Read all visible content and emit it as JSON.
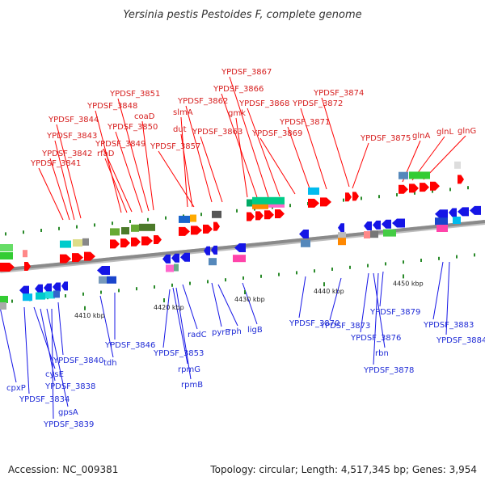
{
  "title": "Yersinia pestis Pestoides F, complete genome",
  "footer": {
    "accession": "Accession: NC_009381",
    "summary": "Topology: circular; Length: 4,517,345 bp; Genes: 3,954"
  },
  "colors": {
    "forward_label": "#d61e1e",
    "reverse_label": "#1f2bd6",
    "forward_arrow": "#ff0000",
    "reverse_arrow": "#1515e6",
    "backbone": "#8a8a8a",
    "tick_mark": "#2a8a2a"
  },
  "scale_ticks": [
    "4410 kbp",
    "4420 kbp",
    "4430 kbp",
    "4440 kbp",
    "4450 kbp"
  ],
  "forward_genes": [
    "YPDSF_3841",
    "YPDSF_3842",
    "YPDSF_3843",
    "YPDSF_3844",
    "YPDSF_3848",
    "rfaD",
    "YPDSF_3849",
    "YPDSF_3850",
    "YPDSF_3851",
    "coaD",
    "slmA",
    "dut",
    "YPDSF_3857",
    "YPDSF_3862",
    "YPDSF_3863",
    "gmk",
    "YPDSF_3866",
    "YPDSF_3867",
    "YPDSF_3868",
    "YPDSF_3869",
    "YPDSF_3871",
    "YPDSF_3872",
    "YPDSF_3874",
    "YPDSF_3875",
    "glnA",
    "glnL",
    "glnG"
  ],
  "reverse_genes": [
    "cpxP",
    "YPDSF_3834",
    "cysE",
    "YPDSF_3838",
    "gpsA",
    "YPDSF_3839",
    "YPDSF_3840",
    "tdh",
    "YPDSF_3846",
    "YPDSF_3853",
    "rpmG",
    "rpmB",
    "radC",
    "pyrE",
    "rph",
    "ligB",
    "YPDSF_3870",
    "YPDSF_3873",
    "YPDSF_3876",
    "rbn",
    "YPDSF_3878",
    "YPDSF_3879",
    "YPDSF_3883",
    "YPDSF_3884"
  ]
}
